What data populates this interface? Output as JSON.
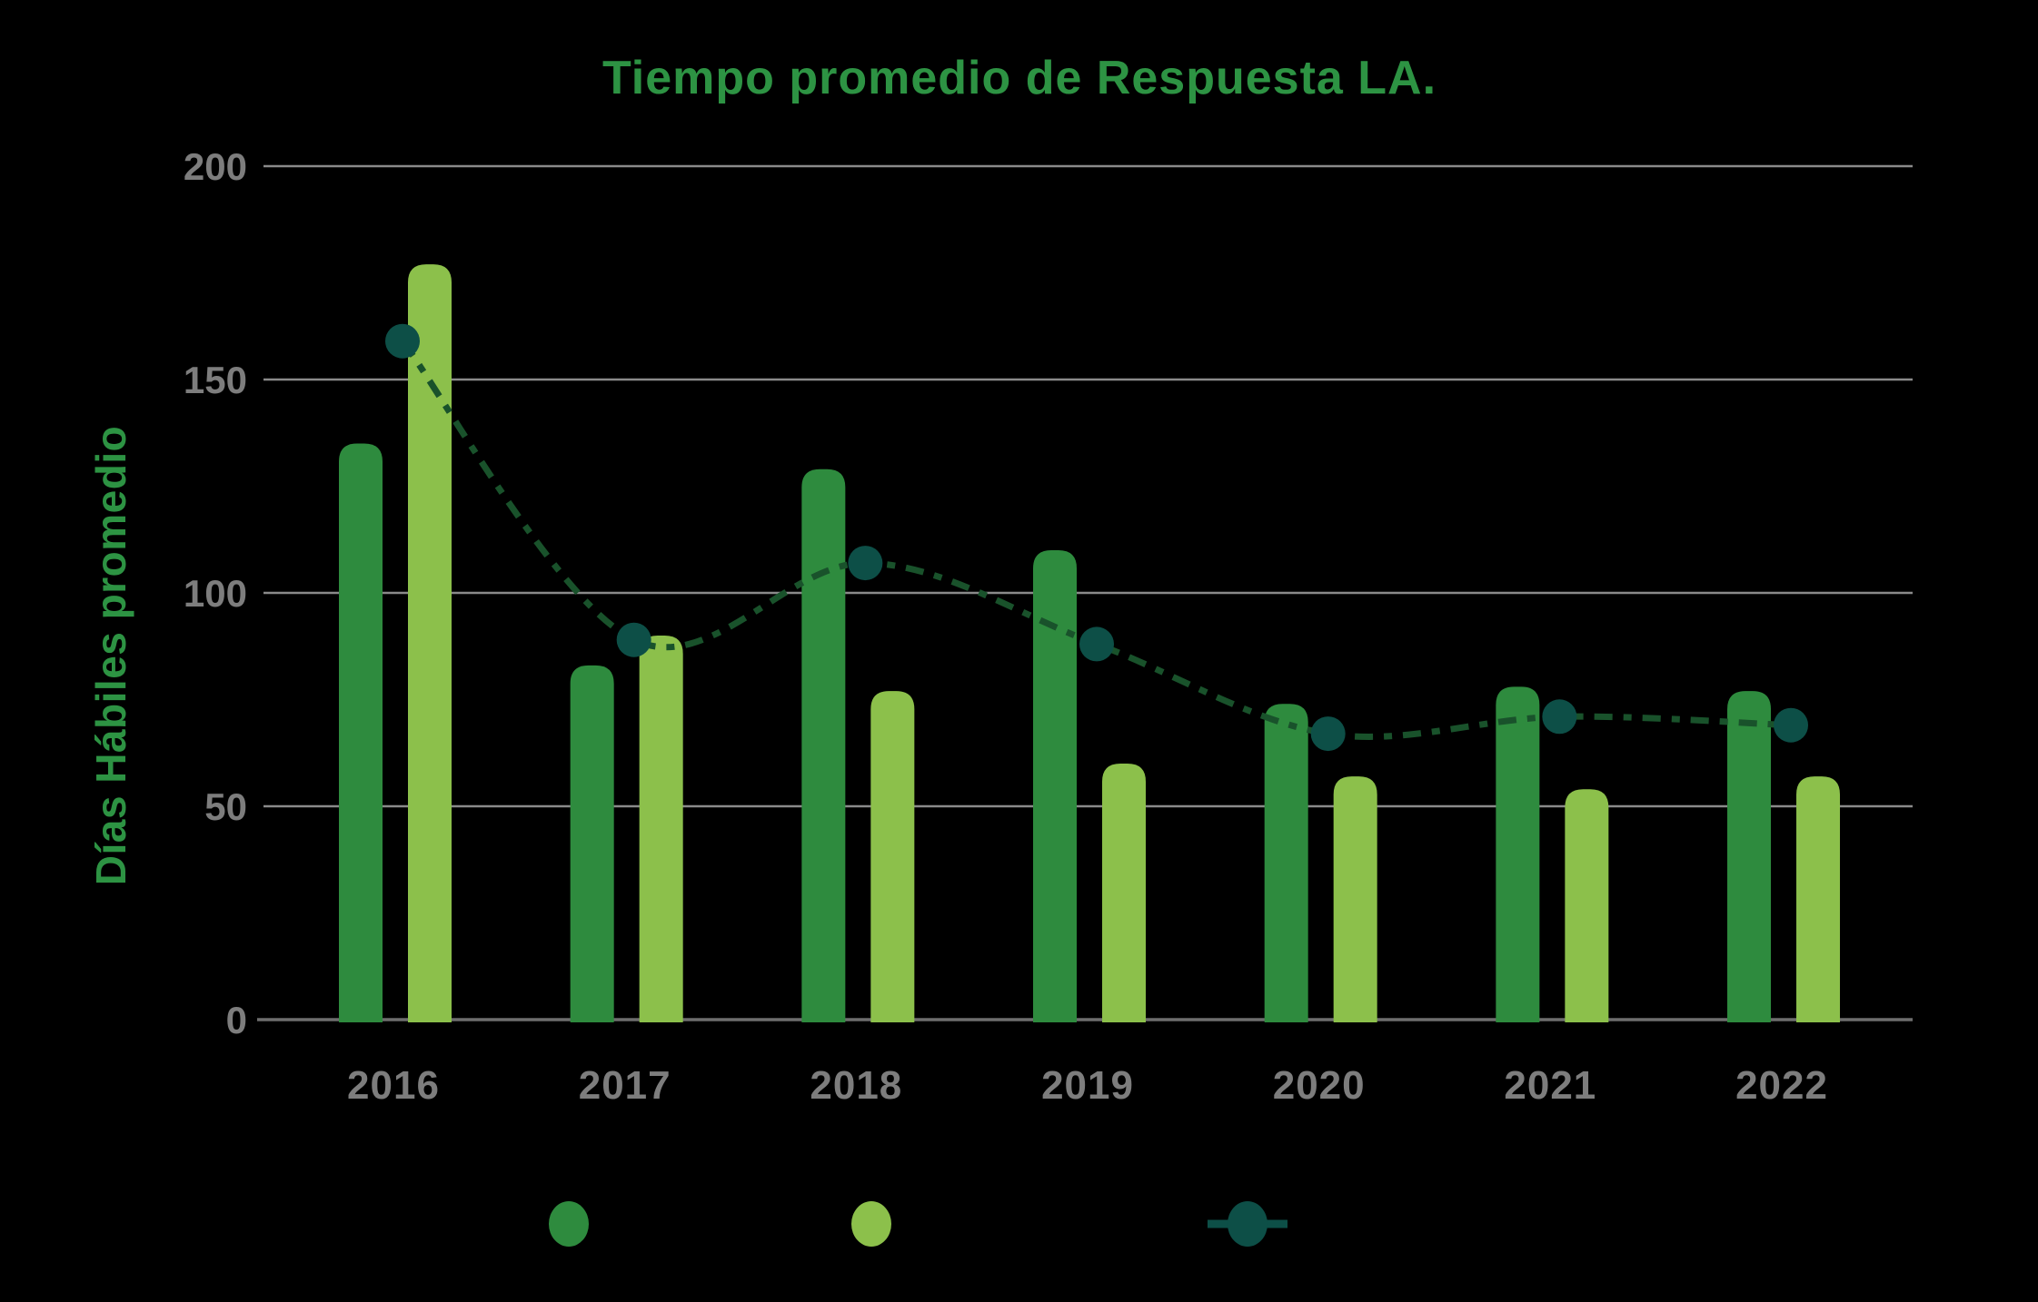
{
  "title": "Tiempo promedio de Respuesta LA.",
  "chart_data": {
    "type": "bar",
    "title": "Tiempo promedio de Respuesta LA.",
    "categories": [
      "2016",
      "2017",
      "2018",
      "2019",
      "2020",
      "2021",
      "2022"
    ],
    "series": [
      {
        "name": "bars-dark-green",
        "type": "bar",
        "color": "#2E8B3E",
        "values": [
          135,
          83,
          129,
          110,
          74,
          78,
          77
        ]
      },
      {
        "name": "bars-light-green",
        "type": "bar",
        "color": "#8CC04B",
        "values": [
          177,
          90,
          77,
          60,
          57,
          54,
          57
        ]
      },
      {
        "name": "line-teal-dots",
        "type": "line",
        "marker_color": "#0D4F47",
        "line_color": "#19522B",
        "values": [
          159,
          89,
          107,
          88,
          67,
          71,
          69
        ]
      }
    ],
    "xlabel": "",
    "ylabel": "Días Hábiles promedio",
    "ylim": [
      0,
      200
    ],
    "yticks": [
      0,
      50,
      100,
      150,
      200
    ],
    "grid": true,
    "legend_position": "bottom",
    "legend": [
      {
        "marker": "dark-green-dot",
        "label": ""
      },
      {
        "marker": "light-green-dot",
        "label": ""
      },
      {
        "marker": "teal-dot-on-line",
        "label": ""
      }
    ]
  },
  "colors": {
    "background": "#000000",
    "title_green": "#2D9343",
    "axis_label_green": "#2D9343",
    "tick_gray": "#7D7D7D",
    "grid_gray": "#8A8A8A",
    "axis_line_gray": "#6E6E6E"
  }
}
